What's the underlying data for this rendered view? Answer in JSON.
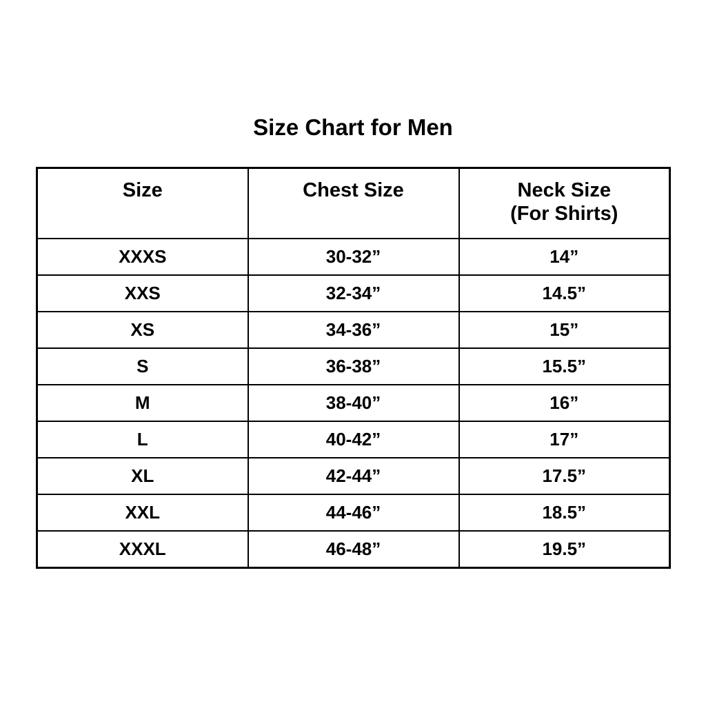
{
  "page": {
    "background_color": "#ffffff",
    "text_color": "#000000",
    "border_color": "#000000"
  },
  "title": "Size Chart for Men",
  "table": {
    "header": {
      "size": "Size",
      "chest": "Chest Size",
      "neck_line1": "Neck Size",
      "neck_line2": "(For Shirts)"
    },
    "rows": [
      {
        "size": "XXXS",
        "chest": "30-32”",
        "neck": "14”"
      },
      {
        "size": "XXS",
        "chest": "32-34”",
        "neck": "14.5”"
      },
      {
        "size": "XS",
        "chest": "34-36”",
        "neck": "15”"
      },
      {
        "size": "S",
        "chest": "36-38”",
        "neck": "15.5”"
      },
      {
        "size": "M",
        "chest": "38-40”",
        "neck": "16”"
      },
      {
        "size": "L",
        "chest": "40-42”",
        "neck": "17”"
      },
      {
        "size": "XL",
        "chest": "42-44”",
        "neck": "17.5”"
      },
      {
        "size": "XXL",
        "chest": "44-46”",
        "neck": "18.5”"
      },
      {
        "size": "XXXL",
        "chest": "46-48”",
        "neck": "19.5”"
      }
    ]
  }
}
